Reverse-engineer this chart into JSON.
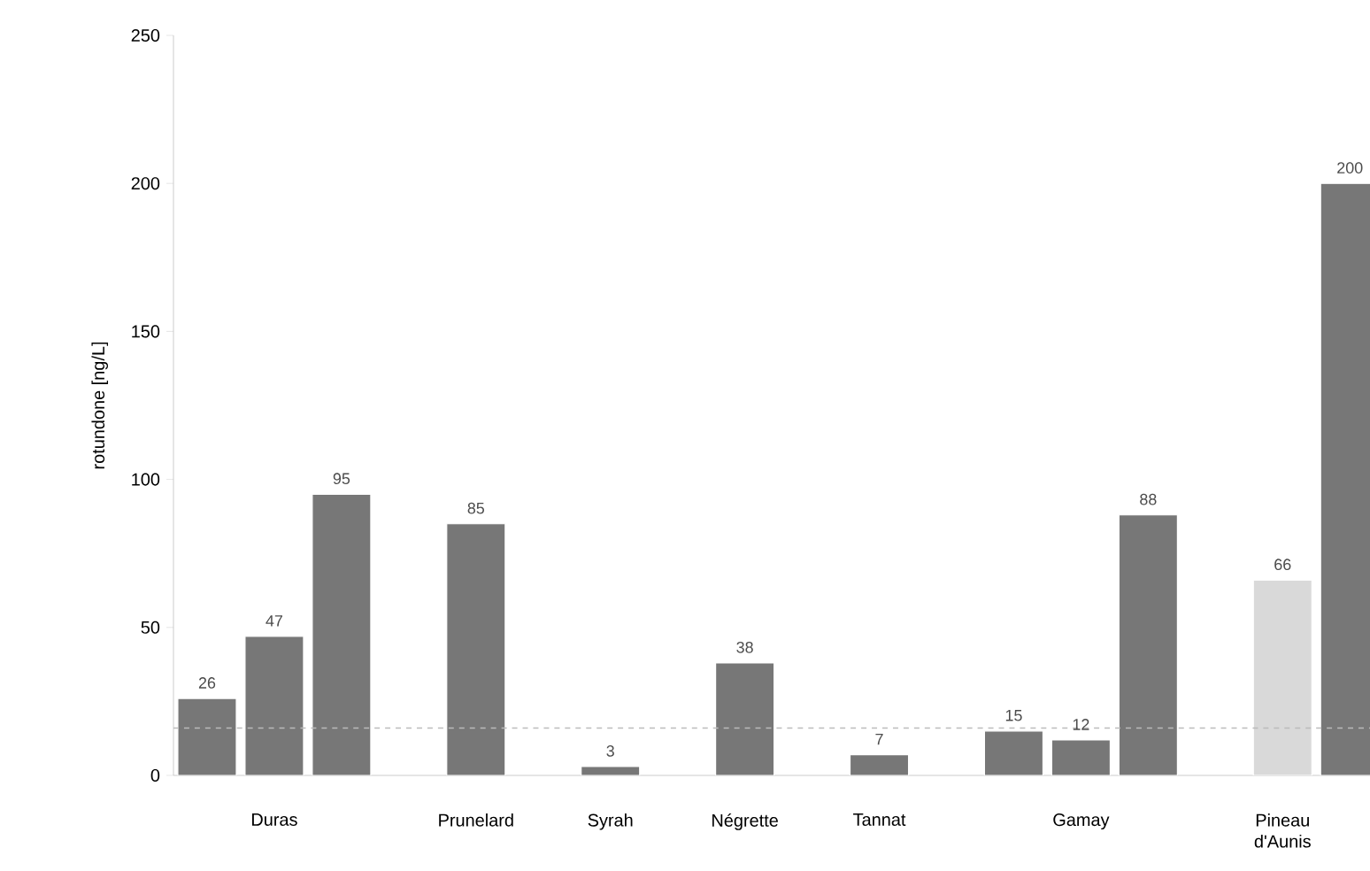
{
  "chart_data": {
    "type": "bar",
    "ylabel": "rotundone [ng/L]",
    "categories": [
      null,
      "Duras",
      null,
      null,
      "Prunelard",
      null,
      "Syrah",
      null,
      "Négrette",
      null,
      "Tannat",
      null,
      null,
      "Gamay",
      null,
      null,
      "Pineau d'Aunis",
      null
    ],
    "values": [
      26,
      47,
      95,
      null,
      85,
      null,
      3,
      null,
      38,
      null,
      7,
      null,
      15,
      12,
      88,
      null,
      66,
      200
    ],
    "colors": [
      "#777777",
      "#777777",
      "#777777",
      null,
      "#777777",
      null,
      "#777777",
      null,
      "#777777",
      null,
      "#777777",
      null,
      "#777777",
      "#777777",
      "#777777",
      null,
      "#d9d9d9",
      "#777777"
    ],
    "data_labels": true,
    "ylim": [
      0,
      250
    ],
    "yticks": [
      0,
      50,
      100,
      150,
      200,
      250
    ],
    "ref_lines": [
      {
        "axis": "y",
        "value": 16,
        "color": "#bbbbbb",
        "line_style": "dashed"
      }
    ]
  }
}
